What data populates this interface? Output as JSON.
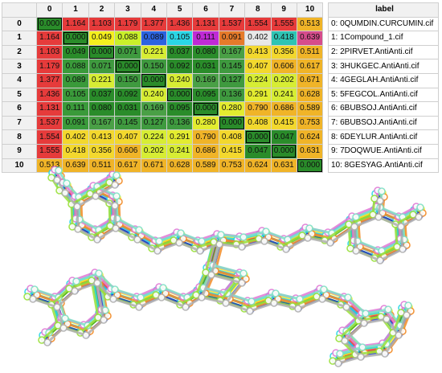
{
  "matrix": {
    "corner": "",
    "headers": [
      "0",
      "1",
      "2",
      "3",
      "4",
      "5",
      "6",
      "7",
      "8",
      "9",
      "10"
    ],
    "rows": [
      [
        "0.000",
        "1.164",
        "1.103",
        "1.179",
        "1.377",
        "1.436",
        "1.131",
        "1.537",
        "1.554",
        "1.555",
        "0.513"
      ],
      [
        "1.164",
        "0.000",
        "0.049",
        "0.088",
        "0.089",
        "0.105",
        "0.111",
        "0.091",
        "0.402",
        "0.418",
        "0.639"
      ],
      [
        "1.103",
        "0.049",
        "0.000",
        "0.071",
        "0.221",
        "0.037",
        "0.080",
        "0.167",
        "0.413",
        "0.356",
        "0.511"
      ],
      [
        "1.179",
        "0.088",
        "0.071",
        "0.000",
        "0.150",
        "0.092",
        "0.031",
        "0.145",
        "0.407",
        "0.606",
        "0.617"
      ],
      [
        "1.377",
        "0.089",
        "0.221",
        "0.150",
        "0.000",
        "0.240",
        "0.169",
        "0.127",
        "0.224",
        "0.202",
        "0.671"
      ],
      [
        "1.436",
        "0.105",
        "0.037",
        "0.092",
        "0.240",
        "0.000",
        "0.095",
        "0.136",
        "0.291",
        "0.241",
        "0.628"
      ],
      [
        "1.131",
        "0.111",
        "0.080",
        "0.031",
        "0.169",
        "0.095",
        "0.000",
        "0.280",
        "0.790",
        "0.686",
        "0.589"
      ],
      [
        "1.537",
        "0.091",
        "0.167",
        "0.145",
        "0.127",
        "0.136",
        "0.280",
        "0.000",
        "0.408",
        "0.415",
        "0.753"
      ],
      [
        "1.554",
        "0.402",
        "0.413",
        "0.407",
        "0.224",
        "0.291",
        "0.790",
        "0.408",
        "0.000",
        "0.047",
        "0.624"
      ],
      [
        "1.555",
        "0.418",
        "0.356",
        "0.606",
        "0.202",
        "0.241",
        "0.686",
        "0.415",
        "0.047",
        "0.000",
        "0.631"
      ],
      [
        "0.513",
        "0.639",
        "0.511",
        "0.617",
        "0.671",
        "0.628",
        "0.589",
        "0.753",
        "0.624",
        "0.631",
        "0.000"
      ]
    ],
    "colors": [
      [
        "#2a8c2a",
        "#e63b3b",
        "#e63b3b",
        "#e63b3b",
        "#e63b3b",
        "#e63b3b",
        "#e63b3b",
        "#e63b3b",
        "#e63b3b",
        "#e63b3b",
        "#f0b428"
      ],
      [
        "#e63b3b",
        "#2a8c2a",
        "#f5ef1e",
        "#c9f02a",
        "#2b63e0",
        "#2ad6e6",
        "#c02ad6",
        "#e67a2a",
        "#e8e8e8",
        "#2ec4b4",
        "#d64c8c"
      ],
      [
        "#e63b3b",
        "#2a8c2a",
        "#2a8c2a",
        "#3f9a3f",
        "#d7ed34",
        "#2a8c2a",
        "#2a8c2a",
        "#4aa046",
        "#f3d82e",
        "#f3d82e",
        "#f0b428"
      ],
      [
        "#e63b3b",
        "#3a9a3a",
        "#3f9a3f",
        "#2a8c2a",
        "#3f9a3f",
        "#2a8c2a",
        "#2a8c2a",
        "#3f9a3f",
        "#f3d82e",
        "#f0b428",
        "#f0b428"
      ],
      [
        "#e63b3b",
        "#3a9a3a",
        "#d7ed34",
        "#3f9a3f",
        "#2a8c2a",
        "#d7ed34",
        "#4aa046",
        "#3f9a3f",
        "#d7ed34",
        "#d7ed34",
        "#f0b428"
      ],
      [
        "#e63b3b",
        "#3a9a3a",
        "#2a8c2a",
        "#2a8c2a",
        "#d7ed34",
        "#2a8c2a",
        "#2a8c2a",
        "#3f9a3f",
        "#e3ec30",
        "#d7ed34",
        "#f0b428"
      ],
      [
        "#e63b3b",
        "#3a9a3a",
        "#2a8c2a",
        "#2a8c2a",
        "#4aa046",
        "#2a8c2a",
        "#2a8c2a",
        "#e3ec30",
        "#f0b428",
        "#f0b428",
        "#f0b428"
      ],
      [
        "#e63b3b",
        "#3a9a3a",
        "#4aa046",
        "#3f9a3f",
        "#3f9a3f",
        "#3f9a3f",
        "#e3ec30",
        "#2a8c2a",
        "#f3d82e",
        "#f3d82e",
        "#f0b428"
      ],
      [
        "#e63b3b",
        "#f3d82e",
        "#f3d82e",
        "#f3d82e",
        "#d7ed34",
        "#e3ec30",
        "#f0b428",
        "#f3d82e",
        "#2a8c2a",
        "#2a8c2a",
        "#f0b428"
      ],
      [
        "#e63b3b",
        "#f3d82e",
        "#f3d82e",
        "#f0b428",
        "#d7ed34",
        "#d7ed34",
        "#f0b428",
        "#f3d82e",
        "#2a8c2a",
        "#2a8c2a",
        "#f0b428"
      ],
      [
        "#f0b428",
        "#f0b428",
        "#f0b428",
        "#f0b428",
        "#f0b428",
        "#f0b428",
        "#f0b428",
        "#f0b428",
        "#f0b428",
        "#f0b428",
        "#2a8c2a"
      ]
    ]
  },
  "labels": {
    "header": "label",
    "items": [
      "0: 0QUMDIN.CURCUMIN.cif",
      "1: 1Compound_1.cif",
      "2: 2PIRVET.AntiAnti.cif",
      "3: 3HUKGEC.AntiAnti.cif",
      "4: 4GEGLAH.AntiAnti.cif",
      "5: 5FEGCOL.AntiAnti.cif",
      "6: 6BUBSOJ.AntiAnti.cif",
      "7: 6BUBSOJ.AntiAnti.cif",
      "8: 6DEYLUR.AntiAnti.cif",
      "9: 7DOQWUE.AntiAnti.cif",
      "10: 8GESYAG.AntiAnti.cif"
    ]
  },
  "overlay": {
    "series_colors": [
      "#e8333a",
      "#f5ef1e",
      "#2aa52a",
      "#1f3ad6",
      "#2ad6e6",
      "#f28c28",
      "#e07ad6",
      "#7fe0c8",
      "#9ae03a",
      "#b0b0b0"
    ]
  }
}
